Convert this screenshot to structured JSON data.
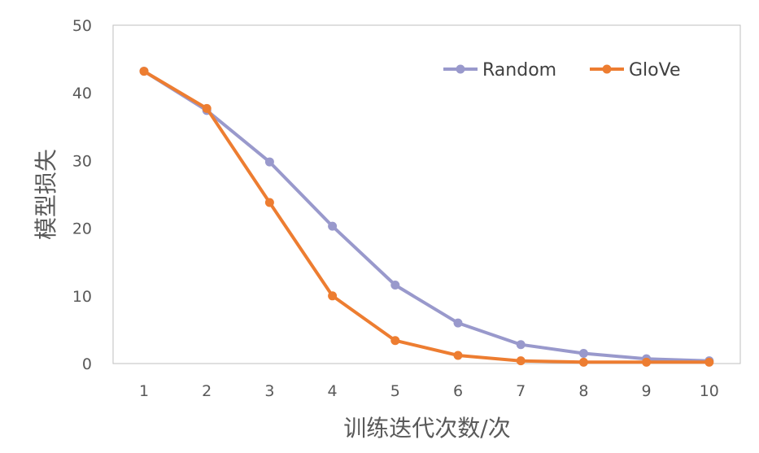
{
  "chart_data": {
    "type": "line",
    "title": "",
    "xlabel": "训练迭代次数/次",
    "ylabel": "模型损失",
    "x": [
      1,
      2,
      3,
      4,
      5,
      6,
      7,
      8,
      9,
      10
    ],
    "ylim": [
      0,
      50
    ],
    "yticks": [
      0,
      10,
      20,
      30,
      40,
      50
    ],
    "grid": false,
    "legend_position": "top-right",
    "series": [
      {
        "name": "Random",
        "color": "#9999CC",
        "values": [
          43.2,
          37.4,
          29.8,
          20.3,
          11.6,
          6.0,
          2.8,
          1.5,
          0.7,
          0.4
        ]
      },
      {
        "name": "GloVe",
        "color": "#ED7D31",
        "values": [
          43.2,
          37.7,
          23.8,
          10.0,
          3.4,
          1.2,
          0.4,
          0.2,
          0.2,
          0.2
        ]
      }
    ]
  }
}
